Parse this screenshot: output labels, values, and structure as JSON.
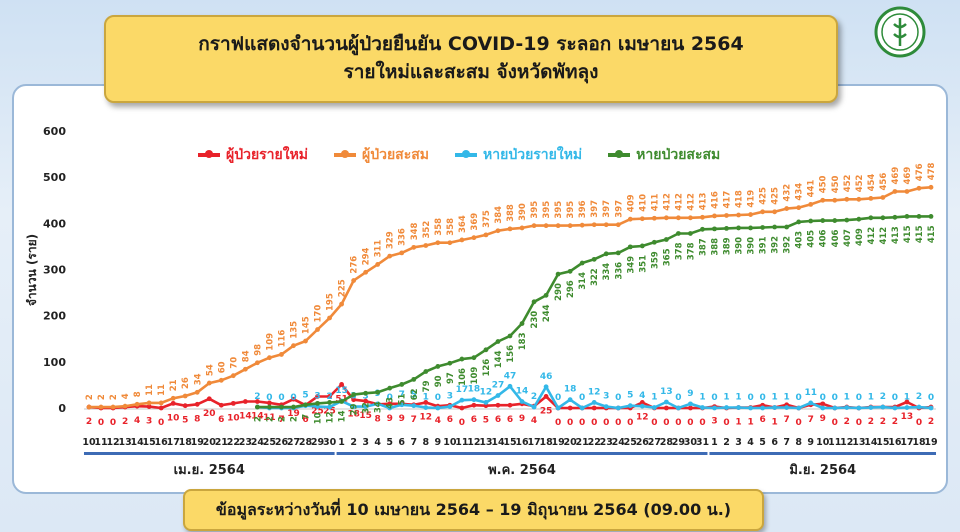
{
  "header": {
    "title_line1": "กราฟแสดงจำนวนผู้ป่วยยืนยัน COVID-19 ระลอก เมษายน 2564",
    "title_line2": "รายใหม่และสะสม จังหวัดพัทลุง"
  },
  "footer": {
    "note": "ข้อมูลระหว่างวันที่ 10 เมษายน 2564 – 19 มิถุนายน 2564 (09.00 น.)"
  },
  "chart_data": {
    "type": "line",
    "ylabel": "จำนวน (ราย)",
    "ylim": [
      0,
      600
    ],
    "yticks": [
      0,
      100,
      200,
      300,
      400,
      500,
      600
    ],
    "x": [
      "10",
      "11",
      "12",
      "13",
      "14",
      "15",
      "16",
      "17",
      "18",
      "19",
      "20",
      "21",
      "22",
      "23",
      "24",
      "25",
      "26",
      "27",
      "28",
      "29",
      "30",
      "1",
      "2",
      "3",
      "4",
      "5",
      "6",
      "7",
      "8",
      "9",
      "10",
      "11",
      "12",
      "13",
      "14",
      "15",
      "16",
      "17",
      "18",
      "19",
      "20",
      "21",
      "22",
      "23",
      "24",
      "25",
      "26",
      "27",
      "28",
      "29",
      "30",
      "31",
      "1",
      "2",
      "3",
      "4",
      "5",
      "6",
      "7",
      "8",
      "9",
      "10",
      "11",
      "12",
      "13",
      "14",
      "15",
      "16",
      "17",
      "18",
      "19"
    ],
    "months": [
      {
        "label": "เม.ย. 2564",
        "start": 0,
        "end": 20
      },
      {
        "label": "พ.ค. 2564",
        "start": 21,
        "end": 51
      },
      {
        "label": "มิ.ย. 2564",
        "start": 52,
        "end": 70
      }
    ],
    "series": [
      {
        "name": "ผู้ป่วยรายใหม่",
        "color": "#e8222a",
        "values": [
          2,
          0,
          0,
          2,
          4,
          3,
          0,
          10,
          5,
          8,
          20,
          6,
          10,
          14,
          14,
          11,
          7,
          19,
          6,
          25,
          25,
          51,
          18,
          15,
          8,
          9,
          9,
          7,
          12,
          4,
          6,
          0,
          6,
          5,
          6,
          6,
          9,
          4,
          25,
          0,
          0,
          0,
          0,
          0,
          0,
          0,
          12,
          0,
          0,
          0,
          0,
          0,
          3,
          0,
          1,
          1,
          6,
          1,
          7,
          0,
          7,
          9,
          0,
          2,
          0,
          2,
          2,
          2,
          13,
          0,
          2
        ]
      },
      {
        "name": "ผู้ป่วยสะสม",
        "color": "#f08a3a",
        "values": [
          2,
          2,
          2,
          4,
          8,
          11,
          11,
          21,
          26,
          34,
          54,
          60,
          70,
          84,
          98,
          109,
          116,
          135,
          145,
          170,
          195,
          225,
          276,
          294,
          311,
          329,
          336,
          348,
          352,
          358,
          358,
          364,
          369,
          375,
          384,
          388,
          390,
          395,
          395,
          395,
          395,
          396,
          397,
          397,
          397,
          409,
          410,
          411,
          412,
          412,
          412,
          413,
          416,
          417,
          418,
          419,
          425,
          425,
          432,
          434,
          441,
          450,
          450,
          452,
          452,
          454,
          456,
          469,
          469,
          476,
          478
        ]
      },
      {
        "name": "หายป่วยรายใหม่",
        "color": "#33b8e8",
        "values": [
          null,
          null,
          null,
          null,
          null,
          null,
          null,
          null,
          null,
          null,
          null,
          null,
          null,
          null,
          2,
          0,
          0,
          0,
          5,
          3,
          2,
          15,
          3,
          3,
          9,
          0,
          7,
          5,
          1,
          0,
          3,
          17,
          18,
          12,
          27,
          47,
          14,
          2,
          46,
          0,
          18,
          0,
          12,
          3,
          0,
          5,
          4,
          1,
          13,
          0,
          9,
          1,
          0,
          1,
          1,
          0,
          0,
          1,
          1,
          0,
          11,
          0,
          0,
          1,
          0,
          1,
          2,
          0,
          1,
          2,
          0
        ]
      },
      {
        "name": "หายป่วยสะสม",
        "color": "#3e8b2e",
        "values": [
          null,
          null,
          null,
          null,
          null,
          null,
          null,
          null,
          null,
          null,
          null,
          null,
          null,
          null,
          2,
          2,
          2,
          2,
          7,
          10,
          12,
          14,
          29,
          32,
          34,
          43,
          51,
          62,
          79,
          90,
          97,
          106,
          109,
          126,
          144,
          156,
          183,
          230,
          244,
          290,
          296,
          314,
          322,
          334,
          336,
          349,
          351,
          359,
          365,
          378,
          378,
          387,
          388,
          389,
          390,
          390,
          391,
          392,
          392,
          403,
          405,
          406,
          406,
          407,
          409,
          412,
          412,
          413,
          415,
          415,
          415
        ]
      }
    ],
    "legend_position": "top",
    "grid": false
  }
}
